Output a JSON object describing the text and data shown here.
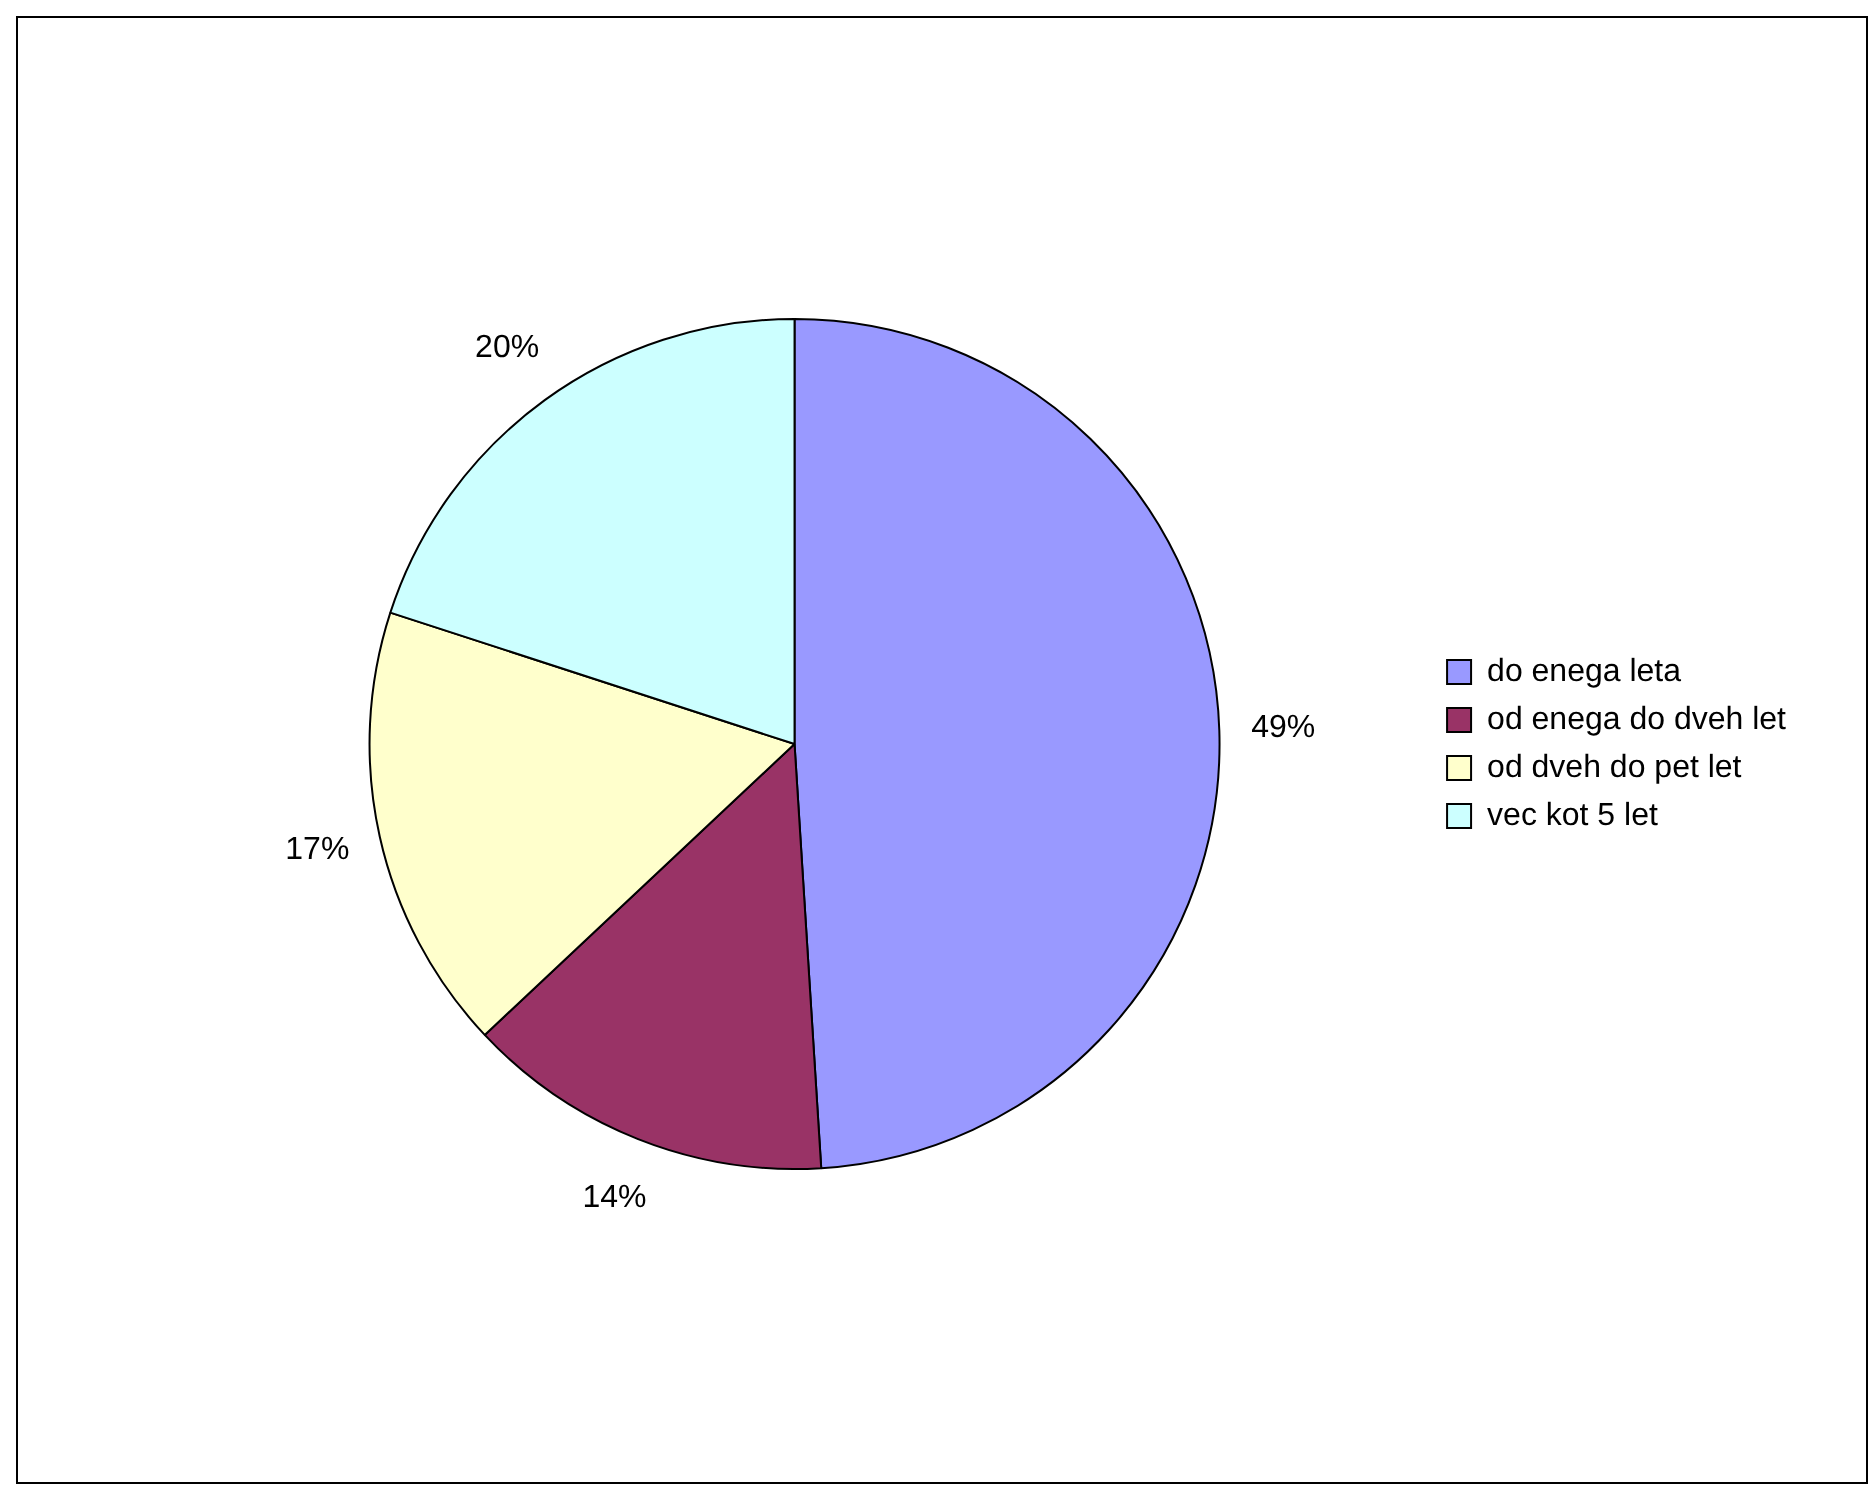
{
  "chart_data": {
    "type": "pie",
    "categories": [
      "do enega leta",
      "od enega do dveh let",
      "od dveh do pet let",
      "vec kot 5 let"
    ],
    "values": [
      49,
      14,
      17,
      20
    ],
    "colors": [
      "#9999ff",
      "#993366",
      "#ffffcc",
      "#ccffff"
    ],
    "value_labels": [
      "49%",
      "14%",
      "17%",
      "20%"
    ],
    "legend": "right"
  }
}
